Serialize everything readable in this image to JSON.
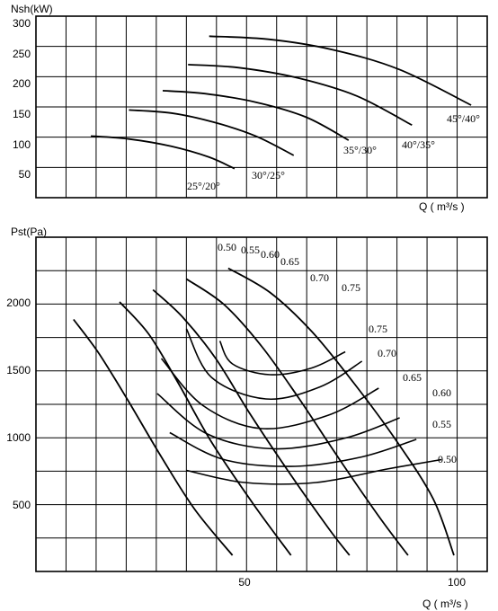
{
  "chart_data": [
    {
      "type": "line",
      "ylabel": "Nsh(kW)",
      "xlabel": "Q ( m³/s )",
      "y_ticks": [
        "300",
        "250",
        "200",
        "150",
        "100",
        "50"
      ],
      "ylim": [
        0,
        300
      ],
      "grid": true,
      "series": [
        {
          "name": "25°/20°",
          "x": [
            13,
            22,
            32,
            41,
            47
          ],
          "y": [
            102,
            97,
            85,
            67,
            48
          ]
        },
        {
          "name": "30°/25°",
          "x": [
            22,
            32,
            42,
            52,
            61
          ],
          "y": [
            145,
            140,
            125,
            102,
            70
          ]
        },
        {
          "name": "35°/30°",
          "x": [
            30,
            40,
            52,
            64,
            74
          ],
          "y": [
            177,
            172,
            158,
            133,
            95
          ]
        },
        {
          "name": "40°/35°",
          "x": [
            36,
            48,
            62,
            76,
            89
          ],
          "y": [
            220,
            215,
            198,
            168,
            120
          ]
        },
        {
          "name": "45°/40°",
          "x": [
            41,
            55,
            70,
            86,
            103
          ],
          "y": [
            267,
            262,
            245,
            212,
            153
          ]
        }
      ]
    },
    {
      "type": "line",
      "ylabel": "Pst(Pa)",
      "xlabel": "Q ( m³/s )",
      "x_ticks": [
        "50",
        "100"
      ],
      "y_ticks": [
        "2000",
        "1500",
        "1000",
        "500"
      ],
      "xlim": [
        0,
        110
      ],
      "ylim": [
        100,
        2500
      ],
      "grid": true,
      "pressure_curves": [
        {
          "x": [
            9,
            15,
            22,
            30,
            38,
            47
          ],
          "y": [
            1970,
            1720,
            1370,
            950,
            560,
            220
          ]
        },
        {
          "x": [
            20,
            27,
            34,
            42,
            52,
            61
          ],
          "y": [
            2100,
            1860,
            1500,
            1060,
            600,
            220
          ]
        },
        {
          "x": [
            28,
            35,
            43,
            51,
            60,
            70,
            75
          ],
          "y": [
            2190,
            1990,
            1680,
            1280,
            860,
            420,
            220
          ]
        },
        {
          "x": [
            36,
            45,
            54,
            63,
            72,
            82,
            89
          ],
          "y": [
            2270,
            2080,
            1770,
            1380,
            960,
            510,
            220
          ]
        },
        {
          "x": [
            46,
            56,
            66,
            76,
            86,
            95,
            100
          ],
          "y": [
            2350,
            2170,
            1880,
            1500,
            1080,
            640,
            220
          ]
        }
      ],
      "efficiency_contours": [
        {
          "label": "0.50",
          "x": [
            36,
            50,
            67,
            84,
            97
          ],
          "y": [
            850,
            760,
            760,
            860,
            930
          ]
        },
        {
          "label": "0.55",
          "x": [
            32,
            45,
            62,
            78,
            91
          ],
          "y": [
            1130,
            930,
            880,
            950,
            1080
          ]
        },
        {
          "label": "0.60",
          "x": [
            29,
            41,
            57,
            74,
            87
          ],
          "y": [
            1420,
            1120,
            1010,
            1090,
            1240
          ]
        },
        {
          "label": "0.65",
          "x": [
            30,
            40,
            54,
            70,
            82
          ],
          "y": [
            1680,
            1330,
            1160,
            1260,
            1460
          ]
        },
        {
          "label": "0.70",
          "x": [
            36,
            42,
            55,
            68,
            78
          ],
          "y": [
            1900,
            1540,
            1380,
            1470,
            1660
          ]
        },
        {
          "label": "0.75",
          "x": [
            44,
            47,
            56,
            66,
            74
          ],
          "y": [
            1810,
            1640,
            1560,
            1610,
            1730
          ]
        }
      ],
      "efficiency_labels": [
        "0.50",
        "0.55",
        "0.60",
        "0.65",
        "0.70",
        "0.75",
        "0.75",
        "0.70",
        "0.65",
        "0.60",
        "0.55",
        "0.50"
      ]
    }
  ]
}
